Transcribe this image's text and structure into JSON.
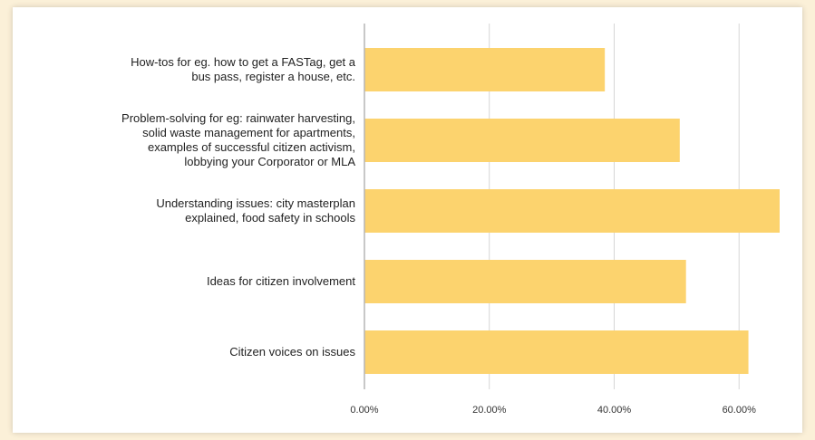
{
  "chart_data": {
    "type": "bar",
    "orientation": "horizontal",
    "categories": [
      [
        "How-tos for eg. how to get a FASTag, get a",
        "bus pass, register a house, etc."
      ],
      [
        "Problem-solving for eg: rainwater harvesting,",
        "solid waste management for apartments,",
        "examples of successful citizen activism,",
        "lobbying your Corporator or MLA"
      ],
      [
        "Understanding issues: city masterplan",
        "explained, food safety in schools"
      ],
      [
        "Ideas for citizen involvement"
      ],
      [
        "Citizen voices on issues"
      ]
    ],
    "values": [
      38.5,
      50.5,
      66.5,
      51.5,
      61.5
    ],
    "xlim": [
      0,
      66.5
    ],
    "xticks": [
      {
        "value": 0,
        "label": "0.00%"
      },
      {
        "value": 20,
        "label": "20.00%"
      },
      {
        "value": 40,
        "label": "40.00%"
      },
      {
        "value": 60,
        "label": "60.00%"
      }
    ],
    "grid": true,
    "colors": {
      "bar": "#fcd36e",
      "grid": "#d6d6d6",
      "axis": "#b5b5b5"
    }
  }
}
